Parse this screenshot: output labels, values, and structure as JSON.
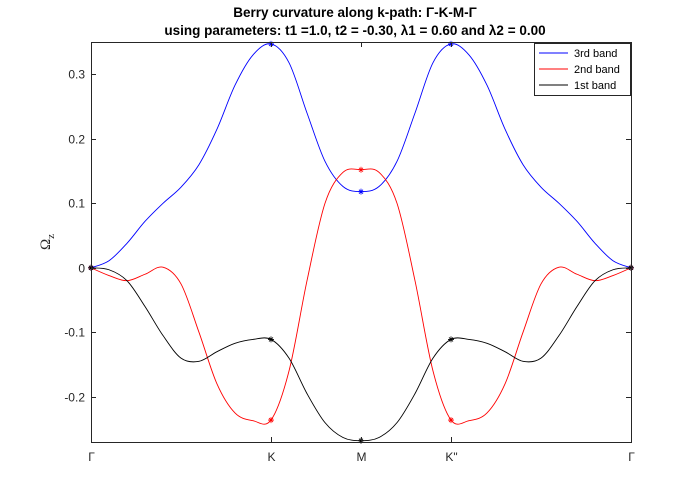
{
  "chart_data": {
    "type": "line",
    "title_line1": "Berry curvature along k-path: Γ-K-M-Γ",
    "title_line2": "using parameters: t1 =1.0, t2 = -0.30, λ1 = 0.60 and λ2 = 0.00",
    "ylabel_main": "Ω",
    "ylabel_sub": "z",
    "xlabel": "",
    "ylim": [
      -0.27,
      0.35
    ],
    "xlim": [
      0,
      3
    ],
    "yticks": [
      -0.2,
      -0.1,
      0,
      0.1,
      0.2,
      0.3
    ],
    "ytick_labels": [
      "-0.2",
      "-0.1",
      "0",
      "0.1",
      "0.2",
      "0.3"
    ],
    "xticks": [
      0,
      1,
      1.5,
      2,
      3
    ],
    "xtick_labels": [
      "Γ",
      "K",
      "M",
      "K\"",
      "Γ"
    ],
    "grid": false,
    "legend_position": "top-right",
    "series": [
      {
        "name": "3rd band",
        "color": "#0000ff",
        "x": [
          0,
          0.1,
          0.2,
          0.3,
          0.4,
          0.5,
          0.6,
          0.7,
          0.8,
          0.9,
          1.0,
          1.1,
          1.2,
          1.3,
          1.4,
          1.5,
          1.6,
          1.7,
          1.8,
          1.9,
          2.0,
          2.1,
          2.2,
          2.3,
          2.4,
          2.5,
          2.6,
          2.7,
          2.8,
          2.9,
          3.0
        ],
        "y": [
          0,
          0.011,
          0.038,
          0.072,
          0.1,
          0.125,
          0.16,
          0.215,
          0.283,
          0.33,
          0.347,
          0.318,
          0.24,
          0.165,
          0.126,
          0.118,
          0.126,
          0.165,
          0.24,
          0.318,
          0.347,
          0.33,
          0.283,
          0.215,
          0.16,
          0.125,
          0.1,
          0.072,
          0.038,
          0.011,
          0
        ]
      },
      {
        "name": "2nd band",
        "color": "#ff0000",
        "x": [
          0,
          0.1,
          0.2,
          0.3,
          0.4,
          0.5,
          0.6,
          0.7,
          0.8,
          0.9,
          1.0,
          1.1,
          1.2,
          1.3,
          1.4,
          1.5,
          1.6,
          1.7,
          1.8,
          1.9,
          2.0,
          2.1,
          2.2,
          2.3,
          2.4,
          2.5,
          2.6,
          2.7,
          2.8,
          2.9,
          3.0
        ],
        "y": [
          0,
          -0.012,
          -0.02,
          -0.01,
          0.001,
          -0.025,
          -0.1,
          -0.18,
          -0.225,
          -0.237,
          -0.236,
          -0.16,
          -0.02,
          0.1,
          0.148,
          0.152,
          0.148,
          0.1,
          -0.02,
          -0.16,
          -0.236,
          -0.237,
          -0.225,
          -0.18,
          -0.1,
          -0.025,
          0.001,
          -0.01,
          -0.02,
          -0.012,
          0
        ]
      },
      {
        "name": "1st band",
        "color": "#000000",
        "x": [
          0,
          0.1,
          0.2,
          0.3,
          0.4,
          0.5,
          0.6,
          0.7,
          0.8,
          0.9,
          1.0,
          1.1,
          1.2,
          1.3,
          1.4,
          1.5,
          1.6,
          1.7,
          1.8,
          1.9,
          2.0,
          2.1,
          2.2,
          2.3,
          2.4,
          2.5,
          2.6,
          2.7,
          2.8,
          2.9,
          3.0
        ],
        "y": [
          0,
          -0.003,
          -0.02,
          -0.06,
          -0.105,
          -0.14,
          -0.145,
          -0.13,
          -0.117,
          -0.111,
          -0.111,
          -0.14,
          -0.195,
          -0.24,
          -0.263,
          -0.268,
          -0.263,
          -0.24,
          -0.195,
          -0.14,
          -0.111,
          -0.111,
          -0.117,
          -0.13,
          -0.145,
          -0.14,
          -0.105,
          -0.06,
          -0.02,
          -0.003,
          0
        ]
      }
    ]
  }
}
